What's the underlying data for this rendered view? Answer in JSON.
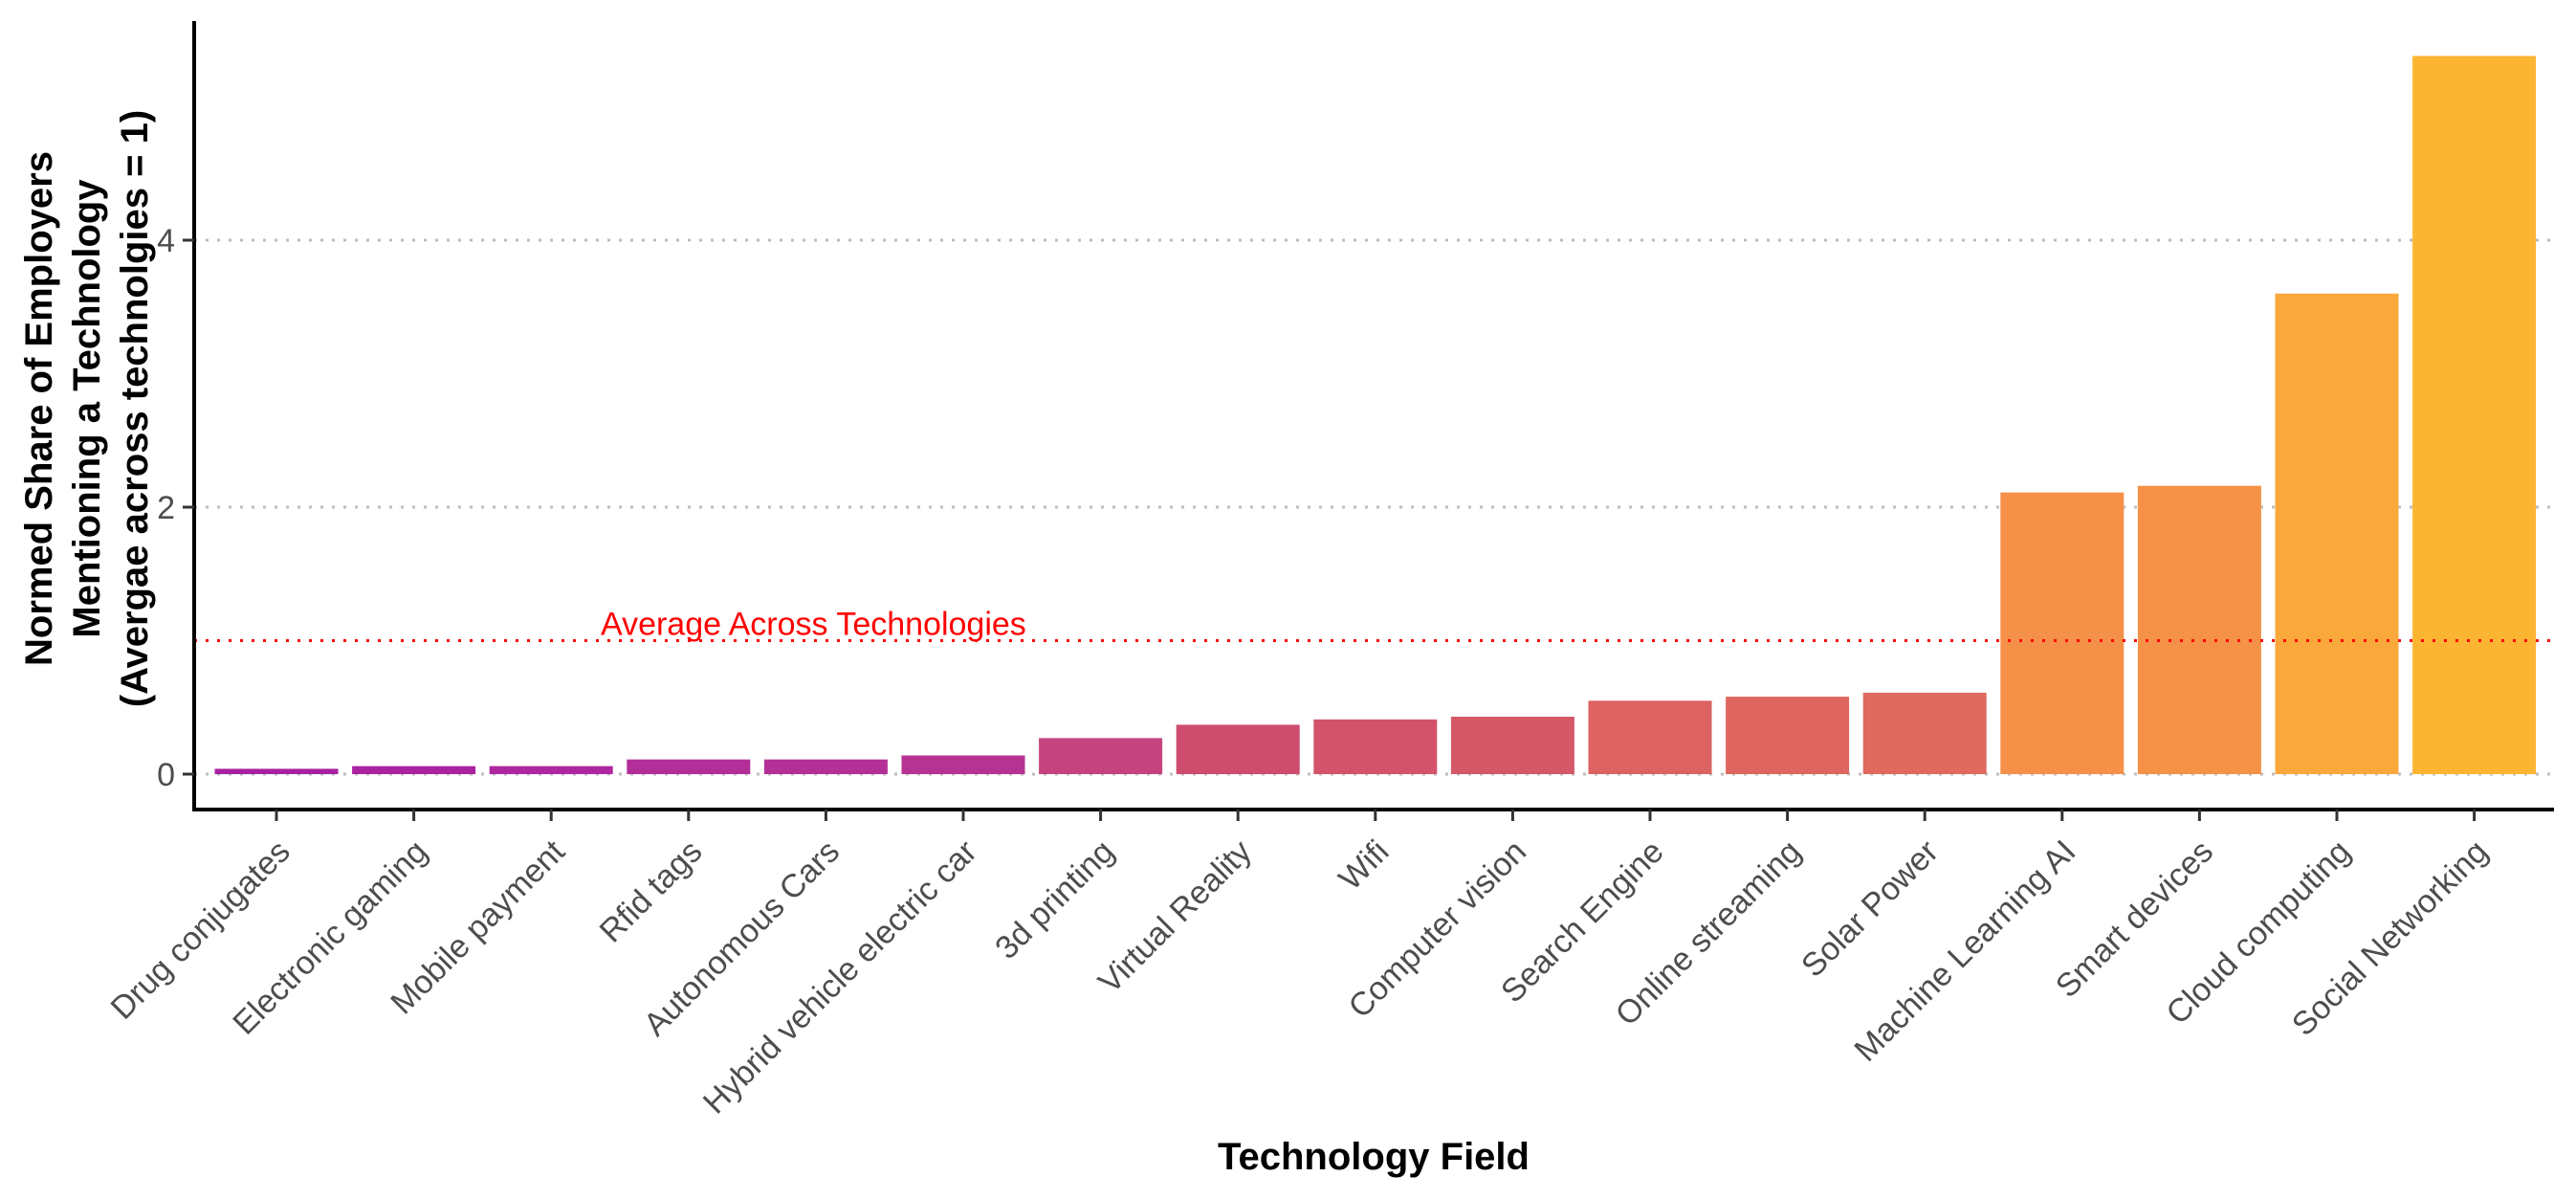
{
  "chart_data": {
    "type": "bar",
    "title": "",
    "xlabel": "Technology Field",
    "ylabel_lines": [
      "Normed Share of Employers",
      "Mentioning a Technology",
      "(Avergae across technolgies = 1)"
    ],
    "categories": [
      "Drug conjugates",
      "Electronic gaming",
      "Mobile payment",
      "Rfid tags",
      "Autonomous Cars",
      "Hybrid vehicle electric car",
      "3d printing",
      "Virtual Reality",
      "Wifi",
      "Computer vision",
      "Search Engine",
      "Online streaming",
      "Solar Power",
      "Machine Learning AI",
      "Smart devices",
      "Cloud computing",
      "Social Networking"
    ],
    "values": [
      0.04,
      0.06,
      0.06,
      0.11,
      0.11,
      0.14,
      0.27,
      0.37,
      0.41,
      0.43,
      0.55,
      0.58,
      0.61,
      2.11,
      2.16,
      3.6,
      5.38
    ],
    "colors": [
      "#a8209e",
      "#ab22a0",
      "#ae27a0",
      "#b32e98",
      "#b53096",
      "#b73393",
      "#c6447e",
      "#ce4d6f",
      "#d3546a",
      "#d45867",
      "#dd6262",
      "#df6660",
      "#e06a60",
      "#f59048",
      "#f59248",
      "#faa83c",
      "#fbb532"
    ],
    "ylim": [
      0,
      5.65
    ],
    "yticks": [
      0,
      2,
      4
    ],
    "grid": "horizontal dotted at major y ticks",
    "reference_line": {
      "value": 1,
      "label": "Average Across Technologies",
      "color": "#ff0000"
    },
    "legend": "none"
  }
}
